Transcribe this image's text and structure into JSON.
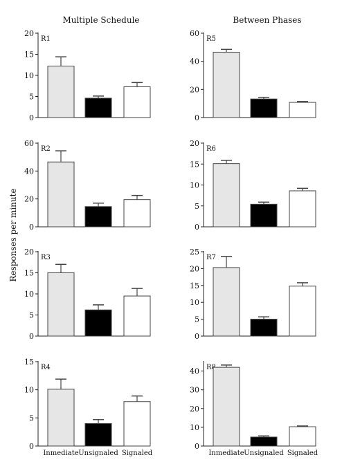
{
  "figure": {
    "left_title": "Multiple Schedule",
    "right_title": "Between Phases",
    "ylabel": "Responses per minute",
    "categories": [
      "Inmediate",
      "Unsignaled",
      "Signaled"
    ],
    "colors": {
      "inmediate": "#e6e6e6",
      "unsignaled": "#000000",
      "signaled": "#ffffff",
      "stroke": "#444444"
    }
  },
  "chart_data": [
    {
      "type": "bar",
      "label": "R1",
      "column": "Multiple Schedule",
      "categories": [
        "Inmediate",
        "Unsignaled",
        "Signaled"
      ],
      "values": [
        12.2,
        4.6,
        7.3
      ],
      "errors": [
        2.2,
        0.5,
        1.0
      ],
      "ylim": [
        0,
        20
      ],
      "yticks": [
        0,
        5,
        10,
        15,
        20
      ]
    },
    {
      "type": "bar",
      "label": "R5",
      "column": "Between Phases",
      "categories": [
        "Inmediate",
        "Unsignaled",
        "Signaled"
      ],
      "values": [
        46.5,
        13.2,
        10.8
      ],
      "errors": [
        2.0,
        1.2,
        0.6
      ],
      "ylim": [
        0,
        60
      ],
      "yticks": [
        0,
        20,
        40,
        60
      ]
    },
    {
      "type": "bar",
      "label": "R2",
      "column": "Multiple Schedule",
      "categories": [
        "Inmediate",
        "Unsignaled",
        "Signaled"
      ],
      "values": [
        46.5,
        14.5,
        19.5
      ],
      "errors": [
        8.0,
        2.5,
        3.0
      ],
      "ylim": [
        0,
        60
      ],
      "yticks": [
        0,
        20,
        40,
        60
      ]
    },
    {
      "type": "bar",
      "label": "R6",
      "column": "Between Phases",
      "categories": [
        "Inmediate",
        "Unsignaled",
        "Signaled"
      ],
      "values": [
        15.1,
        5.4,
        8.6
      ],
      "errors": [
        0.8,
        0.5,
        0.6
      ],
      "ylim": [
        0,
        20
      ],
      "yticks": [
        0,
        5,
        10,
        15,
        20
      ]
    },
    {
      "type": "bar",
      "label": "R3",
      "column": "Multiple Schedule",
      "categories": [
        "Inmediate",
        "Unsignaled",
        "Signaled"
      ],
      "values": [
        15.0,
        6.2,
        9.5
      ],
      "errors": [
        2.0,
        1.2,
        1.8
      ],
      "ylim": [
        0,
        20
      ],
      "yticks": [
        0,
        5,
        10,
        15,
        20
      ]
    },
    {
      "type": "bar",
      "label": "R7",
      "column": "Between Phases",
      "categories": [
        "Inmediate",
        "Unsignaled",
        "Signaled"
      ],
      "values": [
        20.3,
        5.0,
        14.8
      ],
      "errors": [
        3.3,
        0.7,
        1.0
      ],
      "ylim": [
        0,
        25
      ],
      "yticks": [
        0,
        5,
        10,
        15,
        20,
        25
      ]
    },
    {
      "type": "bar",
      "label": "R4",
      "column": "Multiple Schedule",
      "categories": [
        "Inmediate",
        "Unsignaled",
        "Signaled"
      ],
      "values": [
        10.1,
        4.0,
        7.9
      ],
      "errors": [
        1.8,
        0.7,
        1.0
      ],
      "ylim": [
        0,
        15
      ],
      "yticks": [
        0,
        5,
        10,
        15
      ]
    },
    {
      "type": "bar",
      "label": "R8",
      "column": "Between Phases",
      "categories": [
        "Inmediate",
        "Unsignaled",
        "Signaled"
      ],
      "values": [
        42.0,
        4.8,
        10.3
      ],
      "errors": [
        1.2,
        0.6,
        0.4
      ],
      "ylim": [
        0,
        45
      ],
      "yticks": [
        0,
        10,
        20,
        30,
        40
      ]
    }
  ]
}
